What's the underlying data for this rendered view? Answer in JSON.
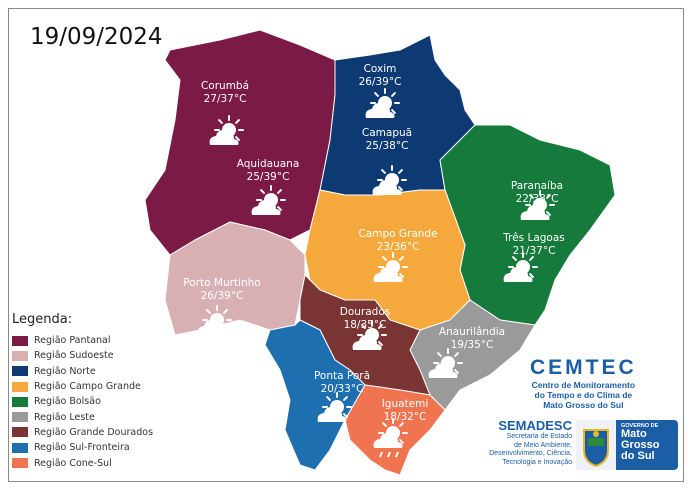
{
  "date": "19/09/2024",
  "colors": {
    "pantanal": "#7a1a45",
    "sudoeste": "#d8b0b4",
    "norte": "#0d3a73",
    "campo_grande": "#f5a93c",
    "bolsao": "#157a3b",
    "leste": "#9a9a9a",
    "grande_dourados": "#7b3434",
    "sul_fronteira": "#1e6fb0",
    "cone_sul": "#f07450"
  },
  "cities": [
    {
      "name": "Corumbá",
      "temp": "27/37°C",
      "icon": "sun-cloud-icon"
    },
    {
      "name": "Aquidauana",
      "temp": "25/39°C",
      "icon": "sun-cloud-icon"
    },
    {
      "name": "Coxim",
      "temp": "26/39°C",
      "icon": "sun-cloud-icon"
    },
    {
      "name": "Camapuã",
      "temp": "25/38°C",
      "icon": "sun-cloud-icon"
    },
    {
      "name": "Paranaíba",
      "temp": "22/38°C",
      "icon": "sun-cloud-icon"
    },
    {
      "name": "Três Lagoas",
      "temp": "21/37°C",
      "icon": "sun-cloud-icon"
    },
    {
      "name": "Campo Grande",
      "temp": "23/36°C",
      "icon": "sun-cloud-icon"
    },
    {
      "name": "Porto Murtinho",
      "temp": "26/39°C",
      "icon": "sun-cloud-icon"
    },
    {
      "name": "Dourados",
      "temp": "18/35°C",
      "icon": "sun-cloud-icon"
    },
    {
      "name": "Anaurilândia",
      "temp": "19/35°C",
      "icon": "sun-cloud-icon"
    },
    {
      "name": "Ponta Porã",
      "temp": "20/33°C",
      "icon": "sun-cloud-icon"
    },
    {
      "name": "Iguatemi",
      "temp": "18/32°C",
      "icon": "sun-cloud-rain-icon"
    }
  ],
  "legend": {
    "title": "Legenda:",
    "items": [
      "Região Pantanal",
      "Região Sudoeste",
      "Região Norte",
      "Região Campo Grande",
      "Região Bolsão",
      "Região Leste",
      "Região Grande Dourados",
      "Região Sul-Fronteira",
      "Região Cone-Sul"
    ]
  },
  "cemtec": {
    "title": "CEMTEC",
    "lines": [
      "Centro de Monitoramento",
      "do Tempo e do Clima de",
      "Mato Grosso do Sul"
    ]
  },
  "semadesc": {
    "title": "SEMADESC",
    "lines": [
      "Secretaria de Estado",
      "de Meio Ambiente,",
      "Desenvolvimento, Ciência,",
      "Tecnologia e Inovação"
    ]
  },
  "governo": {
    "small": "GOVERNO DE",
    "lines": [
      "Mato",
      "Grosso",
      "do Sul"
    ]
  }
}
